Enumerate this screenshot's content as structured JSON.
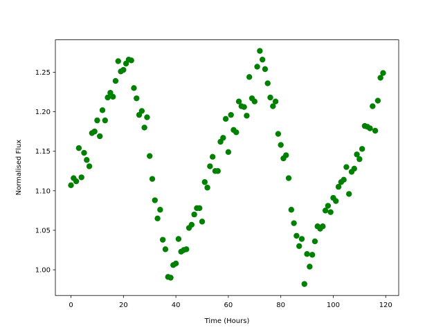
{
  "chart_data": {
    "type": "scatter",
    "xlabel": "Time (Hours)",
    "ylabel": "Normalised Flux",
    "color": "#008000",
    "x": [
      0,
      1,
      2,
      3,
      4,
      5,
      6,
      7,
      8,
      9,
      10,
      11,
      12,
      13,
      14,
      15,
      16,
      17,
      18,
      19,
      20,
      21,
      22,
      23,
      24,
      25,
      26,
      27,
      28,
      29,
      30,
      31,
      32,
      33,
      34,
      35,
      36,
      37,
      38,
      39,
      40,
      41,
      42,
      43,
      44,
      45,
      46,
      47,
      48,
      49,
      50,
      51,
      52,
      53,
      54,
      55,
      56,
      57,
      58,
      59,
      60,
      61,
      62,
      63,
      64,
      65,
      66,
      67,
      68,
      69,
      70,
      71,
      72,
      73,
      74,
      75,
      76,
      77,
      78,
      79,
      80,
      81,
      82,
      83,
      84,
      85,
      86,
      87,
      88,
      89,
      90,
      91,
      92,
      93,
      94,
      95,
      96,
      97,
      98,
      99,
      100,
      101,
      102,
      103,
      104,
      105,
      106,
      107,
      108,
      109,
      110,
      111,
      112,
      113,
      114,
      115,
      116,
      117,
      118,
      119
    ],
    "values": [
      1.107,
      1.116,
      1.112,
      1.154,
      1.117,
      1.148,
      1.139,
      1.131,
      1.173,
      1.175,
      1.189,
      1.169,
      1.202,
      1.189,
      1.218,
      1.224,
      1.219,
      1.239,
      1.264,
      1.251,
      1.253,
      1.261,
      1.266,
      1.265,
      1.23,
      1.217,
      1.196,
      1.201,
      1.18,
      1.193,
      1.144,
      1.115,
      1.088,
      1.065,
      1.076,
      1.038,
      1.026,
      0.991,
      0.99,
      1.006,
      1.008,
      1.039,
      1.023,
      1.025,
      1.026,
      1.053,
      1.057,
      1.07,
      1.078,
      1.078,
      1.061,
      1.111,
      1.104,
      1.131,
      1.143,
      1.125,
      1.125,
      1.162,
      1.167,
      1.191,
      1.149,
      1.196,
      1.177,
      1.174,
      1.213,
      1.207,
      1.206,
      1.195,
      1.244,
      1.217,
      1.213,
      1.257,
      1.277,
      1.266,
      1.254,
      1.236,
      1.218,
      1.207,
      1.213,
      1.172,
      1.158,
      1.141,
      1.145,
      1.116,
      1.076,
      1.059,
      1.043,
      1.03,
      1.039,
      0.982,
      1.02,
      1.004,
      1.019,
      1.036,
      1.055,
      1.052,
      1.055,
      1.075,
      1.081,
      1.073,
      1.091,
      1.087,
      1.105,
      1.111,
      1.114,
      1.13,
      1.096,
      1.124,
      1.128,
      1.146,
      1.14,
      1.153,
      1.182,
      1.181,
      1.179,
      1.207,
      1.176,
      1.214,
      1.243,
      1.249
    ],
    "xlim": [
      -5.95,
      124.95
    ],
    "xticks": [
      0,
      20,
      40,
      60,
      80,
      100,
      120
    ],
    "ylim": [
      0.9675,
      1.291
    ],
    "yticks": [
      {
        "value": 1.0,
        "label": "1.00"
      },
      {
        "value": 1.05,
        "label": "1.05"
      },
      {
        "value": 1.1,
        "label": "1.10"
      },
      {
        "value": 1.15,
        "label": "1.15"
      },
      {
        "value": 1.2,
        "label": "1.20"
      },
      {
        "value": 1.25,
        "label": "1.25"
      }
    ],
    "grid": false
  }
}
